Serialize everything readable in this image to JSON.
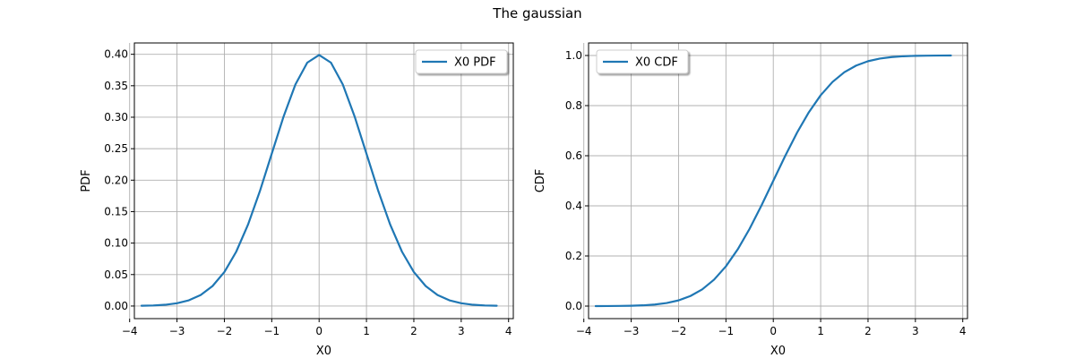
{
  "figure": {
    "title": "The gaussian"
  },
  "colors": {
    "line": "#1f77b4",
    "grid": "#b0b0b0",
    "axis": "#000000"
  },
  "chart_data": [
    {
      "type": "line",
      "xlabel": "X0",
      "ylabel": "PDF",
      "xlim": [
        -3.9,
        4.1
      ],
      "ylim": [
        -0.02,
        0.418
      ],
      "xticks": [
        -4,
        -3,
        -2,
        -1,
        0,
        1,
        2,
        3,
        4
      ],
      "xtick_labels": [
        "−4",
        "−3",
        "−2",
        "−1",
        "0",
        "1",
        "2",
        "3",
        "4"
      ],
      "yticks": [
        0.0,
        0.05,
        0.1,
        0.15,
        0.2,
        0.25,
        0.3,
        0.35,
        0.4
      ],
      "ytick_labels": [
        "0.00",
        "0.05",
        "0.10",
        "0.15",
        "0.20",
        "0.25",
        "0.30",
        "0.35",
        "0.40"
      ],
      "grid": true,
      "legend_position": "top-right",
      "series": [
        {
          "name": "X0 PDF",
          "x": [
            -3.75,
            -3.5,
            -3.25,
            -3.0,
            -2.75,
            -2.5,
            -2.25,
            -2.0,
            -1.75,
            -1.5,
            -1.25,
            -1.0,
            -0.75,
            -0.5,
            -0.25,
            0.0,
            0.25,
            0.5,
            0.75,
            1.0,
            1.25,
            1.5,
            1.75,
            2.0,
            2.25,
            2.5,
            2.75,
            3.0,
            3.25,
            3.5,
            3.75
          ],
          "y": [
            0.0004,
            0.0009,
            0.002,
            0.0044,
            0.0091,
            0.0175,
            0.0317,
            0.054,
            0.0863,
            0.1295,
            0.1826,
            0.242,
            0.3011,
            0.3521,
            0.3867,
            0.3989,
            0.3867,
            0.3521,
            0.3011,
            0.242,
            0.1826,
            0.1295,
            0.0863,
            0.054,
            0.0317,
            0.0175,
            0.0091,
            0.0044,
            0.002,
            0.0009,
            0.0004
          ]
        }
      ]
    },
    {
      "type": "line",
      "xlabel": "X0",
      "ylabel": "CDF",
      "xlim": [
        -3.9,
        4.1
      ],
      "ylim": [
        -0.05,
        1.05
      ],
      "xticks": [
        -4,
        -3,
        -2,
        -1,
        0,
        1,
        2,
        3,
        4
      ],
      "xtick_labels": [
        "−4",
        "−3",
        "−2",
        "−1",
        "0",
        "1",
        "2",
        "3",
        "4"
      ],
      "yticks": [
        0.0,
        0.2,
        0.4,
        0.6,
        0.8,
        1.0
      ],
      "ytick_labels": [
        "0.0",
        "0.2",
        "0.4",
        "0.6",
        "0.8",
        "1.0"
      ],
      "grid": true,
      "legend_position": "top-left",
      "series": [
        {
          "name": "X0 CDF",
          "x": [
            -3.75,
            -3.5,
            -3.25,
            -3.0,
            -2.75,
            -2.5,
            -2.25,
            -2.0,
            -1.75,
            -1.5,
            -1.25,
            -1.0,
            -0.75,
            -0.5,
            -0.25,
            0.0,
            0.25,
            0.5,
            0.75,
            1.0,
            1.25,
            1.5,
            1.75,
            2.0,
            2.25,
            2.5,
            2.75,
            3.0,
            3.25,
            3.5,
            3.75
          ],
          "y": [
            0.0001,
            0.0002,
            0.0006,
            0.0013,
            0.003,
            0.0062,
            0.0122,
            0.0228,
            0.0401,
            0.0668,
            0.1056,
            0.1587,
            0.2266,
            0.3085,
            0.4013,
            0.5,
            0.5987,
            0.6915,
            0.7734,
            0.8413,
            0.8944,
            0.9332,
            0.9599,
            0.9772,
            0.9878,
            0.9938,
            0.997,
            0.9987,
            0.9994,
            0.9998,
            0.9999
          ]
        }
      ]
    }
  ]
}
